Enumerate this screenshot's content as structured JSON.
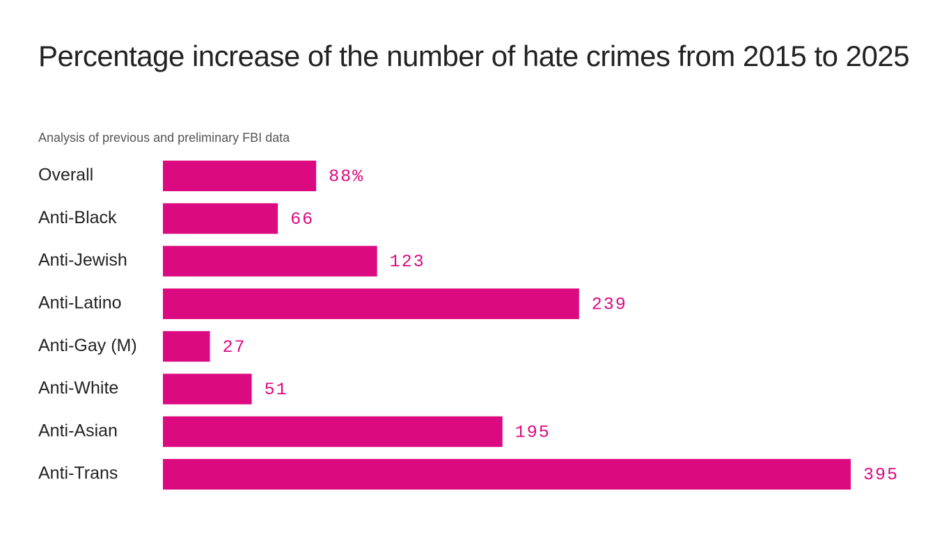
{
  "chart_data": {
    "type": "bar",
    "orientation": "horizontal",
    "title": "Percentage increase of the number of hate crimes from 2015 to 2025",
    "subtitle": "Analysis of previous and preliminary FBI data",
    "categories": [
      "Overall",
      "Anti-Black",
      "Anti-Jewish",
      "Anti-Latino",
      "Anti-Gay (M)",
      "Anti-White",
      "Anti-Asian",
      "Anti-Trans"
    ],
    "values": [
      88,
      66,
      123,
      239,
      27,
      51,
      195,
      395
    ],
    "value_labels": [
      "88%",
      "66",
      "123",
      "239",
      "27",
      "51",
      "195",
      "395"
    ],
    "color": "#dc0a80"
  }
}
